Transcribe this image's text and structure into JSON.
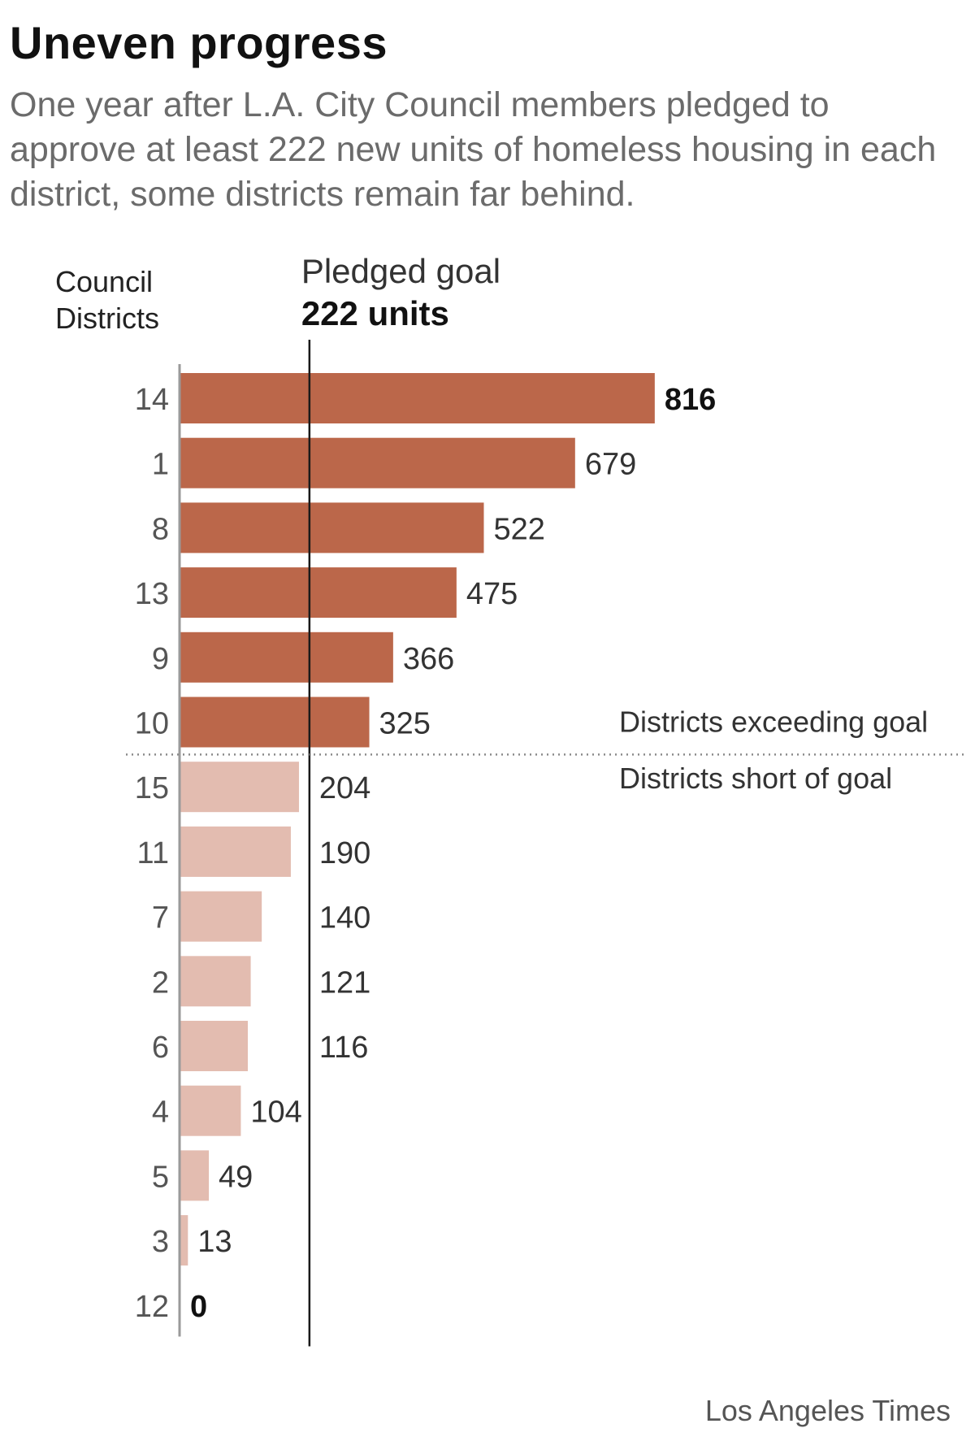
{
  "title": "Uneven progress",
  "subtitle": "One year after L.A. City Council members pledged to approve at least 222 new units of homeless housing in each district, some districts remain far behind.",
  "credit": "Los Angeles Times",
  "colors": {
    "exceeding": "#bb674a",
    "short": "#e3bcb0",
    "goal_line": "#1a1a1a",
    "axis": "#9a9a9a",
    "divider": "#8a8a8a"
  },
  "chart_data": {
    "type": "bar",
    "orientation": "horizontal",
    "y_header": [
      "Council",
      "Districts"
    ],
    "categories": [
      "14",
      "1",
      "8",
      "13",
      "9",
      "10",
      "15",
      "11",
      "7",
      "2",
      "6",
      "4",
      "5",
      "3",
      "12"
    ],
    "values": [
      816,
      679,
      522,
      475,
      366,
      325,
      204,
      190,
      140,
      121,
      116,
      104,
      49,
      13,
      0
    ],
    "goal": {
      "value": 222,
      "label_line1": "Pledged goal",
      "label_line2": "222 units"
    },
    "group_labels": {
      "exceeding": "Districts exceeding goal",
      "short": "Districts short of goal"
    },
    "bold_labels": [
      "816",
      "0"
    ],
    "xlim": [
      0,
      840
    ],
    "grid": false,
    "legend": "none"
  }
}
